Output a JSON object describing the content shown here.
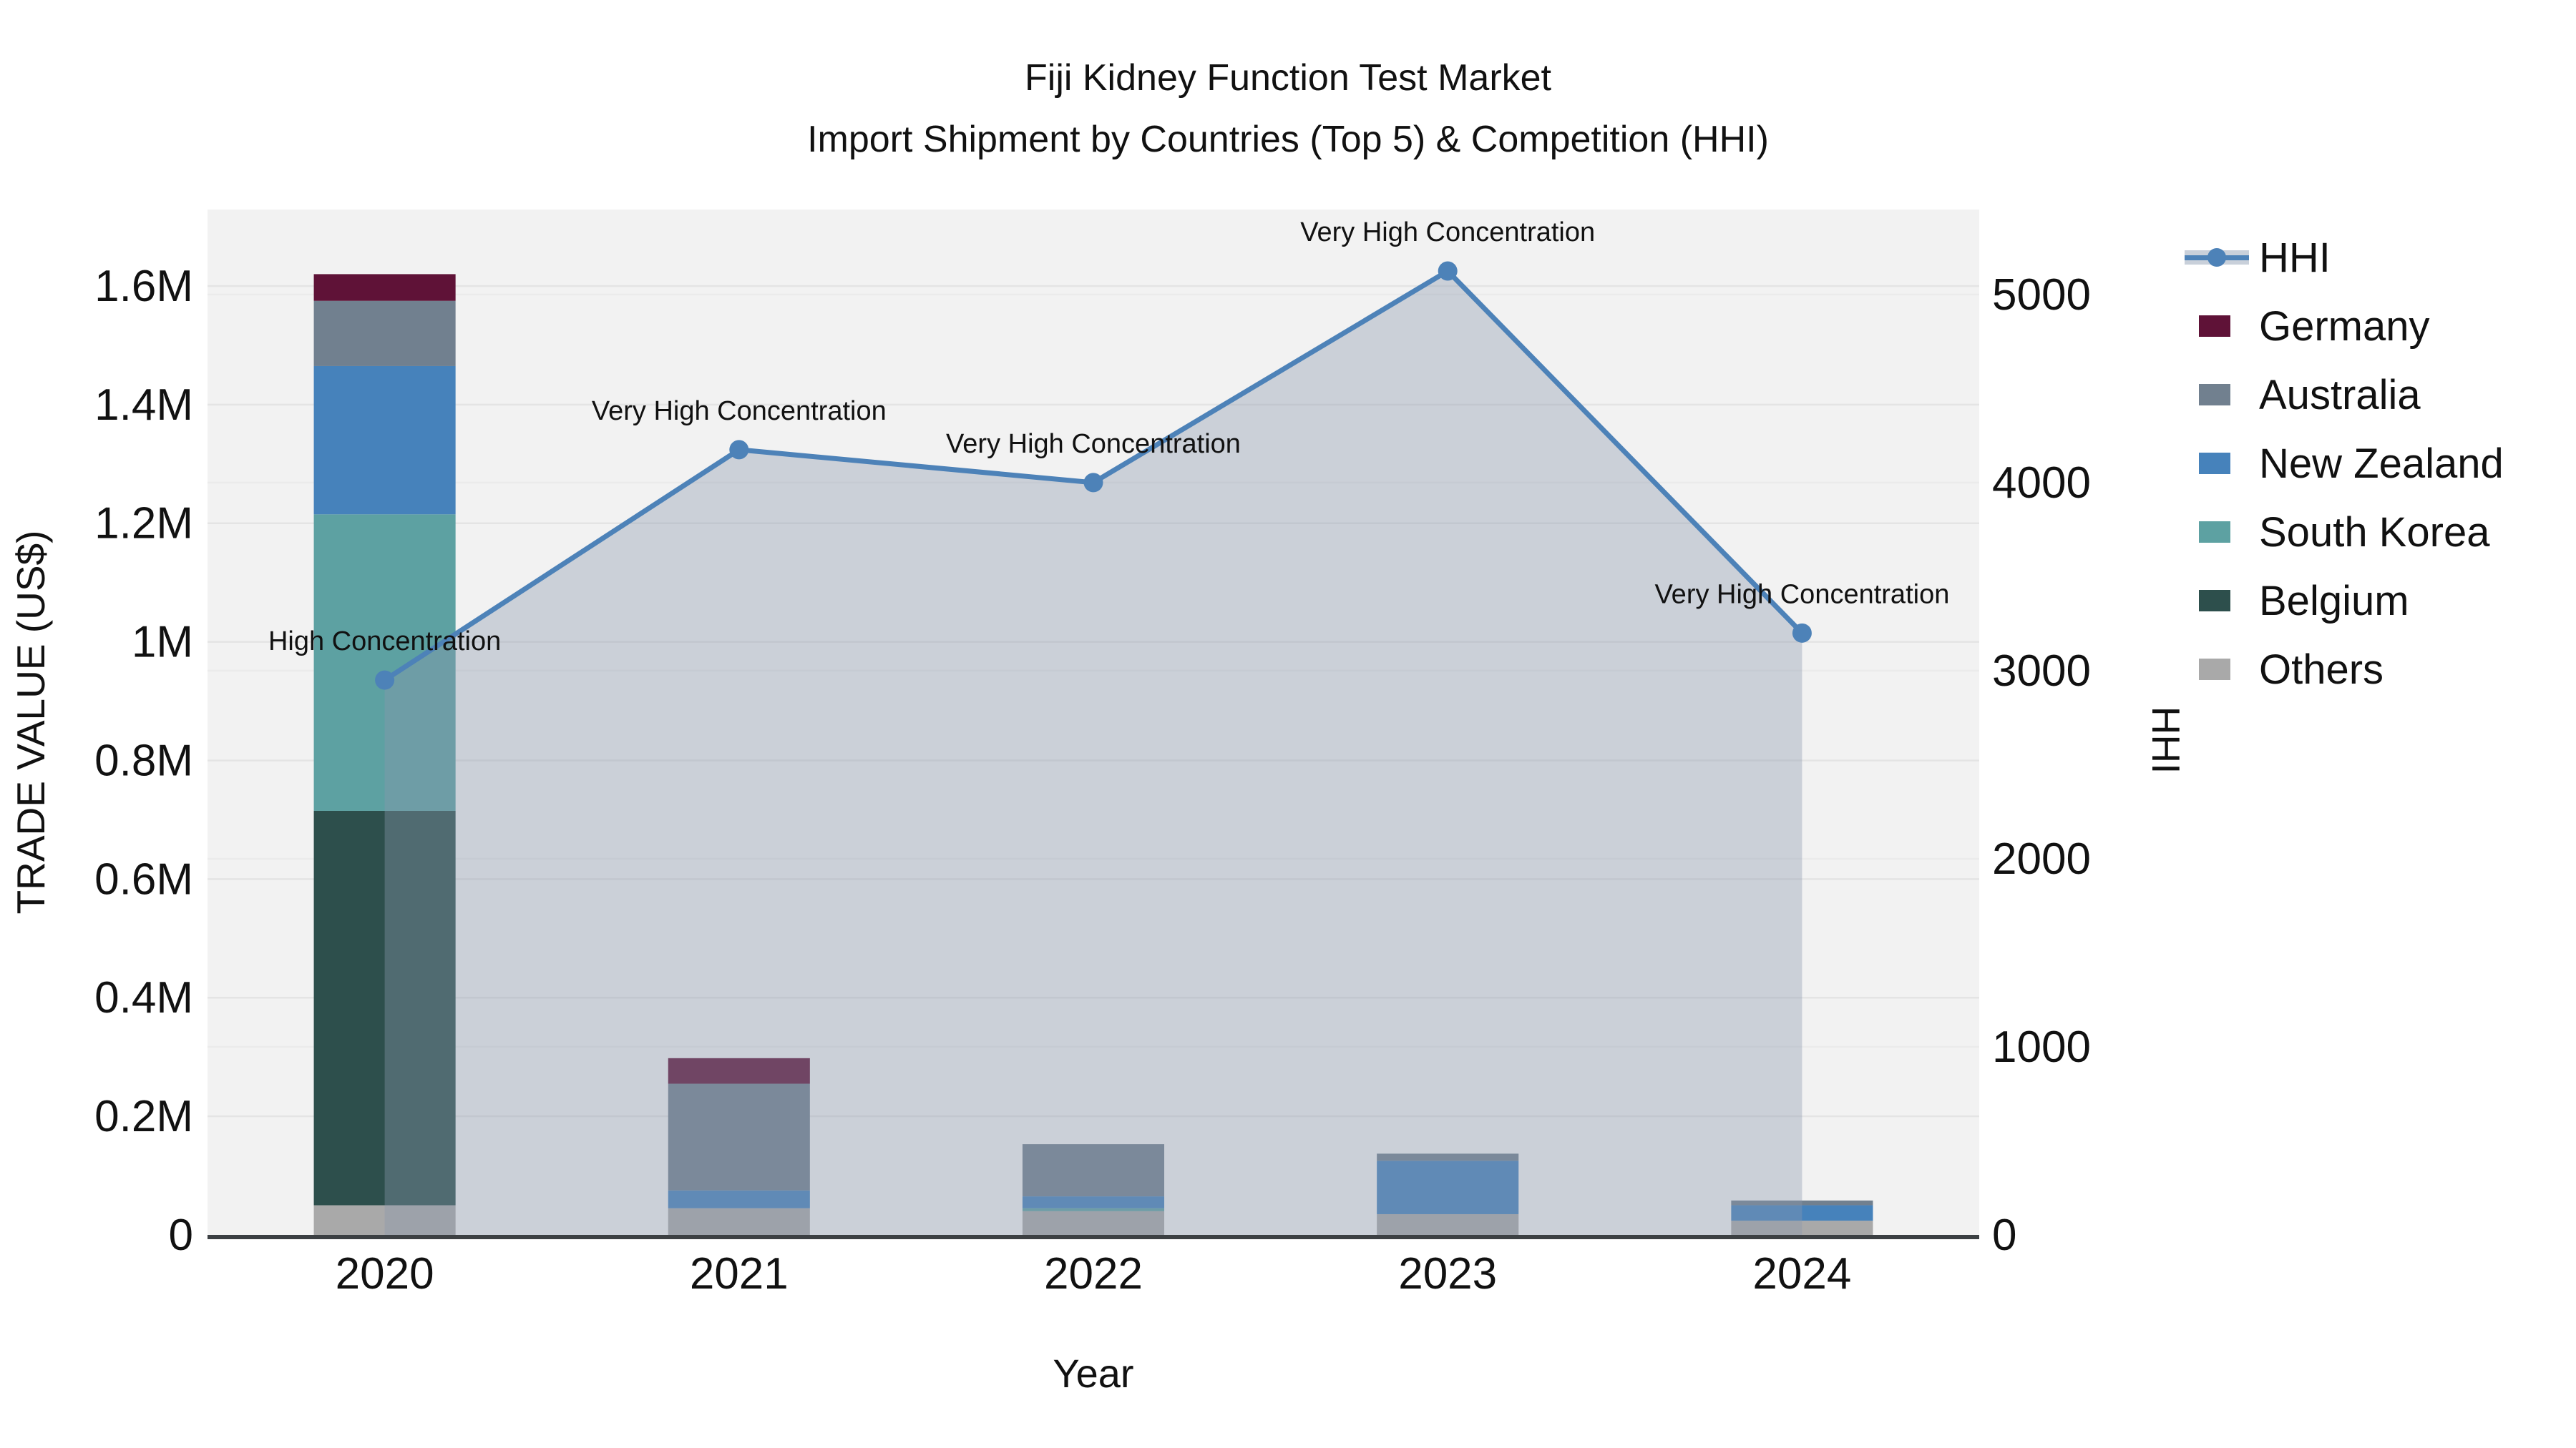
{
  "title": {
    "line1": "Fiji Kidney Function Test Market",
    "line2": "Import Shipment by Countries (Top 5) & Competition (HHI)"
  },
  "chart_data": {
    "type": "bar",
    "subtype": "stacked-bars-with-hhi-line-area",
    "title": "Fiji Kidney Function Test Market",
    "subtitle": "Import Shipment by Countries (Top 5) & Competition (HHI)",
    "categories": [
      "2020",
      "2021",
      "2022",
      "2023",
      "2024"
    ],
    "xlabel": "Year",
    "ylabel": "TRADE VALUE (US$)",
    "ylabel_right": "HHI",
    "bar_value_unit": "million US$",
    "bar_series": [
      {
        "name": "Others",
        "color": "#a9a9a9",
        "values": [
          0.05,
          0.045,
          0.04,
          0.035,
          0.024
        ]
      },
      {
        "name": "Belgium",
        "color": "#2d4f4c",
        "values": [
          0.665,
          0,
          0,
          0,
          0
        ]
      },
      {
        "name": "South Korea",
        "color": "#5da1a2",
        "values": [
          0.5,
          0,
          0.005,
          0,
          0
        ]
      },
      {
        "name": "New Zealand",
        "color": "#4682bb",
        "values": [
          0.25,
          0.03,
          0.02,
          0.09,
          0.026
        ]
      },
      {
        "name": "Australia",
        "color": "#71808f",
        "values": [
          0.11,
          0.18,
          0.088,
          0.012,
          0.008
        ]
      },
      {
        "name": "Germany",
        "color": "#5f1237",
        "values": [
          0.045,
          0.043,
          0,
          0,
          0
        ]
      }
    ],
    "line_series": {
      "name": "HHI",
      "color": "#4d82b8",
      "area_color": "rgba(140,152,174,0.38)",
      "values": [
        2950,
        4175,
        4000,
        5125,
        3200
      ]
    },
    "annotations": [
      {
        "category": "2020",
        "text": "High Concentration"
      },
      {
        "category": "2021",
        "text": "Very High Concentration"
      },
      {
        "category": "2022",
        "text": "Very High Concentration"
      },
      {
        "category": "2023",
        "text": "Very High Concentration"
      },
      {
        "category": "2024",
        "text": "Very High Concentration"
      }
    ],
    "axis_left": {
      "tick_labels": [
        "0",
        "0.2M",
        "0.4M",
        "0.6M",
        "0.8M",
        "1M",
        "1.2M",
        "1.4M",
        "1.6M"
      ],
      "tick_values": [
        0,
        0.2,
        0.4,
        0.6,
        0.8,
        1.0,
        1.2,
        1.4,
        1.6
      ],
      "min": 0,
      "max": 1.729
    },
    "axis_right": {
      "tick_labels": [
        "0",
        "1000",
        "2000",
        "3000",
        "4000",
        "5000"
      ],
      "tick_values": [
        0,
        1000,
        2000,
        3000,
        4000,
        5000
      ],
      "min": 0,
      "max": 5452
    },
    "legend": [
      {
        "label": "HHI",
        "type": "line",
        "color": "#4d82b8",
        "band": "#c9d0da"
      },
      {
        "label": "Germany",
        "type": "square",
        "color": "#5f1237"
      },
      {
        "label": "Australia",
        "type": "square",
        "color": "#71808f"
      },
      {
        "label": "New Zealand",
        "type": "square",
        "color": "#4682bb"
      },
      {
        "label": "South Korea",
        "type": "square",
        "color": "#5da1a2"
      },
      {
        "label": "Belgium",
        "type": "square",
        "color": "#2d4f4c"
      },
      {
        "label": "Others",
        "type": "square",
        "color": "#a9a9a9"
      }
    ],
    "grid": true,
    "legend_position": "right",
    "styles": {
      "plot_bg": "#f2f2f2",
      "grid_color": "#e4e4e4",
      "axis_line_color": "#3c4043",
      "text_color": "#111111"
    }
  }
}
